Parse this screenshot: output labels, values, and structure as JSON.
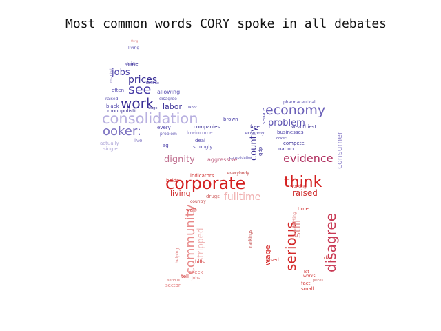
{
  "chart_data": {
    "type": "wordcloud",
    "title": "Most common words CORY spoke in all debates",
    "shape": "elephant",
    "palette": {
      "top": "#3a2f96",
      "bottom": "#d42a2a"
    },
    "words": [
      {
        "text": "corporate",
        "weight": 1.0,
        "color": "#d42020"
      },
      {
        "text": "think",
        "weight": 0.95,
        "color": "#d42020"
      },
      {
        "text": "consolidation",
        "weight": 0.9,
        "color": "#b8b0e0"
      },
      {
        "text": "work",
        "weight": 0.85,
        "color": "#3a2f96"
      },
      {
        "text": "see",
        "weight": 0.82,
        "color": "#4a3fa8"
      },
      {
        "text": "economy",
        "weight": 0.8,
        "color": "#6a5fb8"
      },
      {
        "text": "ooker:",
        "weight": 0.78,
        "color": "#7a70c0"
      },
      {
        "text": "disagree",
        "weight": 0.85,
        "color": "#c93a55"
      },
      {
        "text": "serious",
        "weight": 0.8,
        "color": "#d42a2a"
      },
      {
        "text": "community",
        "weight": 0.75,
        "color": "#e88a8a"
      },
      {
        "text": "evidence",
        "weight": 0.7,
        "color": "#b03060"
      },
      {
        "text": "fulltime",
        "weight": 0.6,
        "color": "#f0b0b0"
      },
      {
        "text": "prices",
        "weight": 0.55,
        "color": "#3a2f96"
      },
      {
        "text": "jobs",
        "weight": 0.5,
        "color": "#4a3fa8"
      },
      {
        "text": "problem",
        "weight": 0.55,
        "color": "#5a50b0"
      },
      {
        "text": "labor",
        "weight": 0.5,
        "color": "#3a2f96"
      },
      {
        "text": "country",
        "weight": 0.55,
        "color": "#3a2f96"
      },
      {
        "text": "consumer",
        "weight": 0.5,
        "color": "#9a90d0"
      },
      {
        "text": "dignity",
        "weight": 0.5,
        "color": "#c07090"
      },
      {
        "text": "living",
        "weight": 0.45,
        "color": "#d03030"
      },
      {
        "text": "raised",
        "weight": 0.45,
        "color": "#d03030"
      },
      {
        "text": "still",
        "weight": 0.5,
        "color": "#e09090"
      },
      {
        "text": "stripped",
        "weight": 0.45,
        "color": "#f0b8b8"
      },
      {
        "text": "wage",
        "weight": 0.4,
        "color": "#d42020"
      },
      {
        "text": "indicators",
        "weight": 0.25,
        "color": "#d03030"
      },
      {
        "text": "aggressive",
        "weight": 0.25,
        "color": "#c06080"
      },
      {
        "text": "market",
        "weight": 0.2,
        "color": "#9a90c8"
      },
      {
        "text": "mine",
        "weight": 0.2,
        "color": "#3a2f96"
      },
      {
        "text": "often",
        "weight": 0.2,
        "color": "#5a50b0"
      },
      {
        "text": "black",
        "weight": 0.2,
        "color": "#4a3fa8"
      },
      {
        "text": "raised",
        "weight": 0.18,
        "color": "#5a50b0"
      },
      {
        "text": "monopolistic",
        "weight": 0.2,
        "color": "#3a2f96"
      },
      {
        "text": "allowing",
        "weight": 0.2,
        "color": "#5a50b0"
      },
      {
        "text": "disagree",
        "weight": 0.18,
        "color": "#5a50b0"
      },
      {
        "text": "every",
        "weight": 0.2,
        "color": "#4a3fa8"
      },
      {
        "text": "problem",
        "weight": 0.18,
        "color": "#5a50b0"
      },
      {
        "text": "companies",
        "weight": 0.22,
        "color": "#3a2f96"
      },
      {
        "text": "lowincome",
        "weight": 0.2,
        "color": "#8a80c8"
      },
      {
        "text": "deal",
        "weight": 0.2,
        "color": "#4a3fa8"
      },
      {
        "text": "strongly",
        "weight": 0.22,
        "color": "#5a50b0"
      },
      {
        "text": "live",
        "weight": 0.2,
        "color": "#8a80c8"
      },
      {
        "text": "ag",
        "weight": 0.2,
        "color": "#4a3fa8"
      },
      {
        "text": "actually",
        "weight": 0.2,
        "color": "#b0a8d8"
      },
      {
        "text": "single",
        "weight": 0.2,
        "color": "#b0a8d8"
      },
      {
        "text": "brown",
        "weight": 0.2,
        "color": "#4a3fa8"
      },
      {
        "text": "free",
        "weight": 0.2,
        "color": "#3a2f96"
      },
      {
        "text": "economy",
        "weight": 0.18,
        "color": "#4a3fa8"
      },
      {
        "text": "senate",
        "weight": 0.2,
        "color": "#5a50b0"
      },
      {
        "text": "pharmaceutical",
        "weight": 0.2,
        "color": "#5a50b0"
      },
      {
        "text": "wealthiest",
        "weight": 0.22,
        "color": "#3a2f96"
      },
      {
        "text": "businesses",
        "weight": 0.22,
        "color": "#4a3fa8"
      },
      {
        "text": "compete",
        "weight": 0.2,
        "color": "#3a2f96"
      },
      {
        "text": "nation",
        "weight": 0.2,
        "color": "#4a3fa8"
      },
      {
        "text": "ooker:",
        "weight": 0.15,
        "color": "#4a3fa8"
      },
      {
        "text": "gdp",
        "weight": 0.2,
        "color": "#3a2f96"
      },
      {
        "text": "holds",
        "weight": 0.2,
        "color": "#d03030"
      },
      {
        "text": "drugs",
        "weight": 0.2,
        "color": "#d06060"
      },
      {
        "text": "country",
        "weight": 0.18,
        "color": "#c04040"
      },
      {
        "text": "wall",
        "weight": 0.2,
        "color": "#d03030"
      },
      {
        "text": "everybody",
        "weight": 0.2,
        "color": "#c04040"
      },
      {
        "text": "working",
        "weight": 0.2,
        "color": "#d03030"
      },
      {
        "text": "time",
        "weight": 0.22,
        "color": "#d03030"
      },
      {
        "text": "rankings",
        "weight": 0.2,
        "color": "#c04040"
      },
      {
        "text": "used",
        "weight": 0.22,
        "color": "#d03030"
      },
      {
        "text": "helping",
        "weight": 0.18,
        "color": "#e08080"
      },
      {
        "text": "bills",
        "weight": 0.22,
        "color": "#d03030"
      },
      {
        "text": "check",
        "weight": 0.22,
        "color": "#e07070"
      },
      {
        "text": "tell",
        "weight": 0.2,
        "color": "#d03030"
      },
      {
        "text": "jobs",
        "weight": 0.18,
        "color": "#e08080"
      },
      {
        "text": "sector",
        "weight": 0.2,
        "color": "#e07070"
      },
      {
        "text": "day",
        "weight": 0.22,
        "color": "#d03030"
      },
      {
        "text": "works",
        "weight": 0.2,
        "color": "#d03030"
      },
      {
        "text": "let",
        "weight": 0.2,
        "color": "#d03030"
      },
      {
        "text": "fact",
        "weight": 0.2,
        "color": "#d03030"
      },
      {
        "text": "small",
        "weight": 0.2,
        "color": "#d03030"
      },
      {
        "text": "hurting",
        "weight": 0.18,
        "color": "#e08080"
      },
      {
        "text": "living",
        "weight": 0.12,
        "color": "#5a50b0"
      },
      {
        "text": "dignity",
        "weight": 0.12,
        "color": "#5a50b0"
      },
      {
        "text": "wage",
        "weight": 0.12,
        "color": "#3a2f96"
      },
      {
        "text": "labor",
        "weight": 0.12,
        "color": "#5a50b0"
      },
      {
        "text": "fulltime",
        "weight": 0.12,
        "color": "#4a3fa8"
      },
      {
        "text": "consolidation",
        "weight": 0.12,
        "color": "#5a50b0"
      },
      {
        "text": "serious",
        "weight": 0.12,
        "color": "#d06060"
      },
      {
        "text": "prices",
        "weight": 0.12,
        "color": "#d06060"
      },
      {
        "text": "thing",
        "weight": 0.12,
        "color": "#e09090"
      }
    ]
  }
}
